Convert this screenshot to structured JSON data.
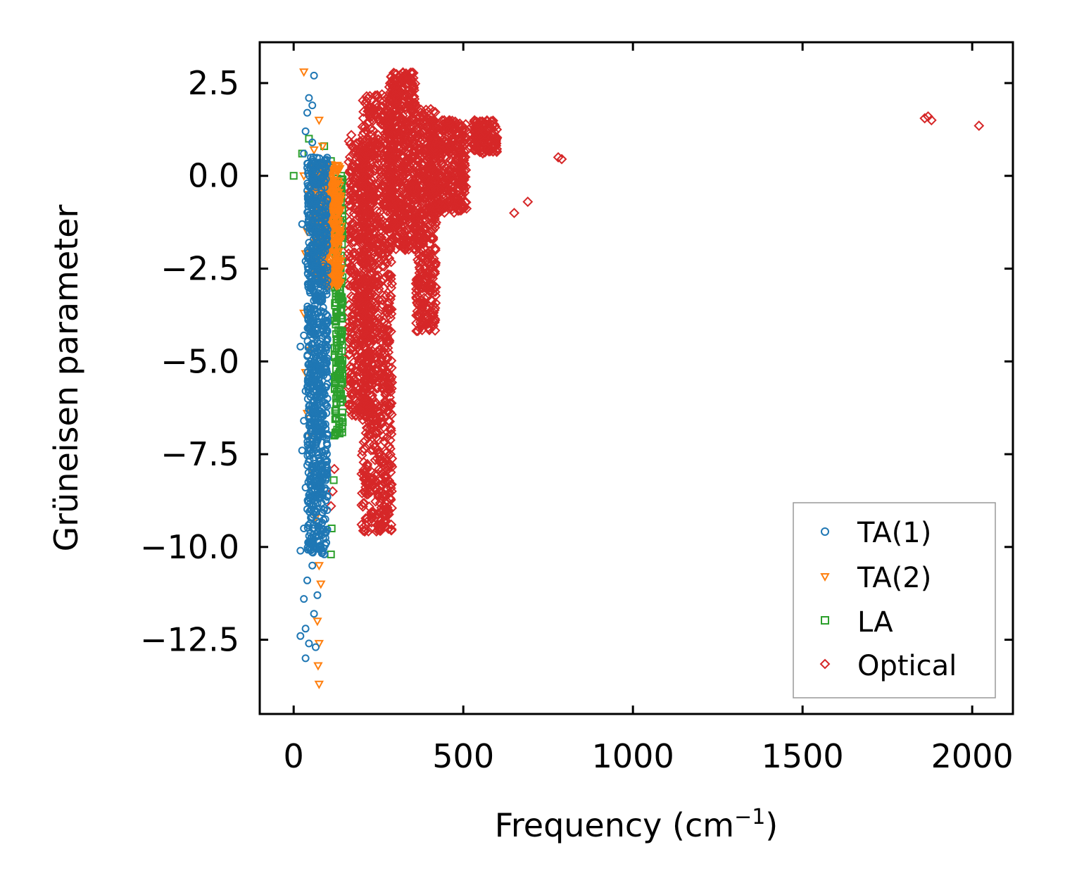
{
  "chart_data": {
    "type": "scatter",
    "title": "",
    "xlabel": "Frequency (cm",
    "xlabel_sup": "−1",
    "xlabel_suffix": ")",
    "ylabel": "Grüneisen parameter",
    "xlim": [
      -100,
      2120
    ],
    "ylim": [
      -14.5,
      3.6
    ],
    "xticks": [
      0,
      500,
      1000,
      1500,
      2000
    ],
    "xtick_labels": [
      "0",
      "500",
      "1000",
      "1500",
      "2000"
    ],
    "yticks": [
      2.5,
      0.0,
      -2.5,
      -5.0,
      -7.5,
      -10.0,
      -12.5
    ],
    "ytick_labels": [
      "2.5",
      "0.0",
      "−2.5",
      "−5.0",
      "−7.5",
      "−10.0",
      "−12.5"
    ],
    "legend_position": "lower-right",
    "series": [
      {
        "name": "TA(1)",
        "color": "#1f77b4",
        "marker": "circle",
        "points": [
          [
            60,
            2.7
          ],
          [
            45,
            2.1
          ],
          [
            55,
            1.9
          ],
          [
            40,
            1.7
          ],
          [
            35,
            1.2
          ],
          [
            55,
            0.9
          ],
          [
            30,
            0.6
          ],
          [
            50,
            0.3
          ],
          [
            40,
            -0.4
          ],
          [
            25,
            -1.3
          ],
          [
            45,
            -1.8
          ],
          [
            35,
            -2.3
          ],
          [
            55,
            -3.0
          ],
          [
            40,
            -3.6
          ],
          [
            60,
            -4.0
          ],
          [
            30,
            -4.3
          ],
          [
            20,
            -4.6
          ],
          [
            50,
            -5.2
          ],
          [
            35,
            -5.8
          ],
          [
            45,
            -6.2
          ],
          [
            30,
            -6.6
          ],
          [
            55,
            -7.0
          ],
          [
            25,
            -7.4
          ],
          [
            40,
            -7.8
          ],
          [
            35,
            -8.4
          ],
          [
            50,
            -9.0
          ],
          [
            30,
            -9.5
          ],
          [
            45,
            -9.9
          ],
          [
            20,
            -10.1
          ],
          [
            55,
            -10.5
          ],
          [
            40,
            -10.9
          ],
          [
            30,
            -11.4
          ],
          [
            60,
            -11.8
          ],
          [
            35,
            -12.2
          ],
          [
            20,
            -12.4
          ],
          [
            45,
            -12.6
          ],
          [
            35,
            -13.0
          ],
          [
            70,
            -11.3
          ],
          [
            65,
            -12.7
          ]
        ],
        "dense_region": {
          "x_min": 40,
          "x_max": 100,
          "y_min": -10.2,
          "y_max": 0.5,
          "count": 900
        }
      },
      {
        "name": "TA(2)",
        "color": "#ff7f0e",
        "marker": "triangle-down",
        "points": [
          [
            30,
            2.8
          ],
          [
            75,
            1.5
          ],
          [
            85,
            0.8
          ],
          [
            60,
            0.7
          ],
          [
            30,
            0.0
          ],
          [
            45,
            -0.5
          ],
          [
            110,
            0.3
          ],
          [
            40,
            -1.5
          ],
          [
            35,
            -2.1
          ],
          [
            30,
            -3.7
          ],
          [
            45,
            -4.7
          ],
          [
            35,
            -5.3
          ],
          [
            40,
            -6.4
          ],
          [
            50,
            -7.0
          ],
          [
            55,
            -8.0
          ],
          [
            65,
            -9.2
          ],
          [
            75,
            -10.5
          ],
          [
            80,
            -11.0
          ],
          [
            70,
            -12.0
          ],
          [
            75,
            -12.6
          ],
          [
            72,
            -13.2
          ],
          [
            75,
            -13.7
          ]
        ],
        "dense_region": {
          "x_min": 60,
          "x_max": 140,
          "y_min": -3.0,
          "y_max": 0.3,
          "count": 500
        }
      },
      {
        "name": "LA",
        "color": "#2ca02c",
        "marker": "square",
        "points": [
          [
            0,
            0.0
          ],
          [
            25,
            0.6
          ],
          [
            45,
            1.0
          ],
          [
            90,
            0.8
          ],
          [
            110,
            0.4
          ],
          [
            140,
            0.0
          ],
          [
            140,
            -1.5
          ],
          [
            135,
            -3.0
          ],
          [
            130,
            -5.0
          ],
          [
            125,
            -6.0
          ],
          [
            120,
            -7.0
          ],
          [
            118,
            -8.2
          ],
          [
            112,
            -9.5
          ],
          [
            110,
            -10.2
          ]
        ],
        "dense_region": {
          "x_min": 120,
          "x_max": 145,
          "y_min": -7.0,
          "y_max": 0.0,
          "count": 200
        }
      },
      {
        "name": "Optical",
        "color": "#d62728",
        "marker": "diamond",
        "points": [
          [
            170,
            1.1
          ],
          [
            650,
            -1.0
          ],
          [
            690,
            -0.7
          ],
          [
            780,
            0.5
          ],
          [
            790,
            0.45
          ],
          [
            1860,
            1.55
          ],
          [
            1870,
            1.6
          ],
          [
            1880,
            1.5
          ],
          [
            2020,
            1.35
          ],
          [
            120,
            -7.9
          ],
          [
            115,
            -8.5
          ],
          [
            110,
            -8.9
          ],
          [
            200,
            -6.0
          ],
          [
            420,
            0.9
          ],
          [
            460,
            0.6
          ]
        ],
        "dense_clusters": [
          {
            "x_min": 160,
            "x_max": 230,
            "y_min": -6.5,
            "y_max": 1.0,
            "count": 500
          },
          {
            "x_min": 200,
            "x_max": 290,
            "y_min": -9.6,
            "y_max": 2.2,
            "count": 900
          },
          {
            "x_min": 280,
            "x_max": 360,
            "y_min": -2.0,
            "y_max": 2.8,
            "count": 500
          },
          {
            "x_min": 360,
            "x_max": 420,
            "y_min": -4.2,
            "y_max": 1.8,
            "count": 400
          },
          {
            "x_min": 400,
            "x_max": 510,
            "y_min": -1.0,
            "y_max": 1.5,
            "count": 400
          },
          {
            "x_min": 530,
            "x_max": 600,
            "y_min": 0.6,
            "y_max": 1.5,
            "count": 150
          }
        ]
      }
    ]
  }
}
